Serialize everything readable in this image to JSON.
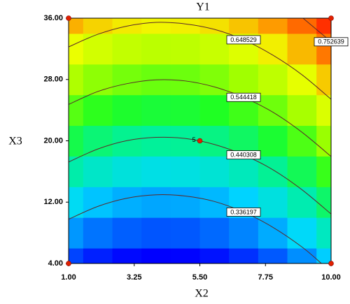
{
  "chart_data": {
    "type": "contour",
    "title": "Y1",
    "x_label": "X2",
    "y_label": "X3",
    "xlim": [
      1,
      10
    ],
    "xticks": [
      {
        "value": 1,
        "label": "1.00"
      },
      3.25,
      {
        "value": 5.5,
        "label": "5.50"
      },
      7.75,
      {
        "value": 10,
        "label": "10.00"
      }
    ],
    "ylim": [
      4,
      36
    ],
    "yticks": [
      {
        "value": 4,
        "label": "4.00"
      },
      {
        "value": 12,
        "label": "12.00"
      },
      {
        "value": 20,
        "label": "20.00"
      },
      {
        "value": 28,
        "label": "28.00"
      },
      {
        "value": 36,
        "label": "36.00"
      }
    ],
    "x": [
      1,
      2,
      3,
      4,
      5,
      6,
      7,
      8,
      9,
      10
    ],
    "y": [
      4,
      8,
      12,
      16,
      20,
      24,
      28,
      32,
      36
    ],
    "z": [
      [
        0.256,
        0.233,
        0.218,
        0.212,
        0.214,
        0.224,
        0.243,
        0.27,
        0.306,
        0.351
      ],
      [
        0.312,
        0.288,
        0.274,
        0.267,
        0.269,
        0.28,
        0.299,
        0.326,
        0.362,
        0.406
      ],
      [
        0.367,
        0.344,
        0.329,
        0.323,
        0.325,
        0.335,
        0.354,
        0.382,
        0.418,
        0.462
      ],
      [
        0.423,
        0.4,
        0.385,
        0.378,
        0.381,
        0.391,
        0.41,
        0.437,
        0.473,
        0.517
      ],
      [
        0.479,
        0.455,
        0.44,
        0.434,
        0.436,
        0.447,
        0.466,
        0.493,
        0.529,
        0.573
      ],
      [
        0.534,
        0.511,
        0.496,
        0.49,
        0.492,
        0.502,
        0.521,
        0.548,
        0.584,
        0.629
      ],
      [
        0.59,
        0.566,
        0.552,
        0.545,
        0.547,
        0.558,
        0.577,
        0.604,
        0.64,
        0.684
      ],
      [
        0.645,
        0.622,
        0.607,
        0.601,
        0.603,
        0.613,
        0.632,
        0.66,
        0.695,
        0.74
      ],
      [
        0.701,
        0.678,
        0.663,
        0.656,
        0.659,
        0.669,
        0.688,
        0.715,
        0.751,
        0.795
      ]
    ],
    "colors": [
      "#0000ff",
      "#0070ff",
      "#00d8ff",
      "#00f0a0",
      "#20ff20",
      "#a0ff00",
      "#f0ff00",
      "#ff9000",
      "#ff3000"
    ],
    "levels": [
      0.336197,
      0.440308,
      0.544418,
      0.648529,
      0.752639
    ],
    "line_color": "#5a2a2a",
    "design_points": {
      "x": [
        1,
        10,
        1,
        10,
        5.5
      ],
      "y": [
        4,
        4,
        36,
        36,
        20
      ],
      "color": "#e02000"
    },
    "center_label": "5"
  }
}
